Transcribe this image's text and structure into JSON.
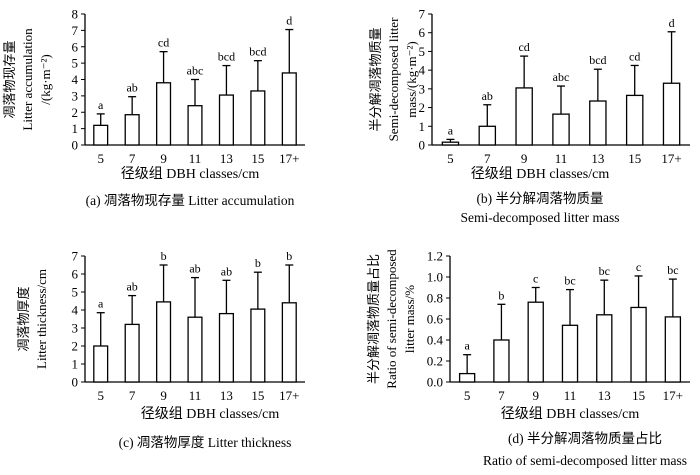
{
  "chart_data": [
    {
      "type": "bar",
      "panel": "a",
      "categories": [
        "5",
        "7",
        "9",
        "11",
        "13",
        "15",
        "17+"
      ],
      "values": [
        1.2,
        1.85,
        3.8,
        2.4,
        3.05,
        3.3,
        4.4
      ],
      "errors": [
        0.7,
        1.1,
        1.9,
        1.6,
        1.8,
        1.85,
        2.65
      ],
      "significance": [
        "a",
        "ab",
        "cd",
        "abc",
        "bcd",
        "bcd",
        "d"
      ],
      "ylim": [
        0,
        8
      ],
      "yticks": [
        "0",
        "1",
        "2",
        "3",
        "4",
        "5",
        "6",
        "7",
        "8"
      ],
      "ylabel_lines": [
        "凋落物现存量",
        "Litter accumulation",
        "/(kg·m⁻²)"
      ],
      "xlabel": "径级组 DBH classes/cm",
      "caption_lines": [
        "(a) 凋落物现存量 Litter accumulation"
      ]
    },
    {
      "type": "bar",
      "panel": "b",
      "categories": [
        "5",
        "7",
        "9",
        "11",
        "13",
        "15",
        "17+"
      ],
      "values": [
        0.15,
        1.0,
        3.05,
        1.65,
        2.35,
        2.65,
        3.3
      ],
      "errors": [
        0.15,
        1.15,
        1.7,
        1.5,
        1.7,
        1.6,
        2.75
      ],
      "significance": [
        "a",
        "ab",
        "cd",
        "abc",
        "bcd",
        "cd",
        "d"
      ],
      "ylim": [
        0,
        7
      ],
      "yticks": [
        "0",
        "1",
        "2",
        "3",
        "4",
        "5",
        "6",
        "7"
      ],
      "ylabel_lines": [
        "半分解凋落物质量",
        "Semi-decomposed litter",
        "mass/(kg·m⁻²)"
      ],
      "xlabel": "径级组 DBH classes/cm",
      "caption_lines": [
        "(b) 半分解凋落物质量",
        "Semi-decomposed litter mass"
      ]
    },
    {
      "type": "bar",
      "panel": "c",
      "categories": [
        "5",
        "7",
        "9",
        "11",
        "13",
        "15",
        "17+"
      ],
      "values": [
        2.0,
        3.2,
        4.45,
        3.6,
        3.8,
        4.05,
        4.4
      ],
      "errors": [
        1.85,
        1.6,
        2.05,
        2.2,
        1.85,
        2.05,
        2.1
      ],
      "significance": [
        "a",
        "ab",
        "b",
        "ab",
        "ab",
        "b",
        "b"
      ],
      "ylim": [
        0,
        7
      ],
      "yticks": [
        "0",
        "1",
        "2",
        "3",
        "4",
        "5",
        "6",
        "7"
      ],
      "ylabel_lines": [
        "凋落物厚度",
        "Litter thickness/cm"
      ],
      "xlabel": "径级组 DBH classes/cm",
      "caption_lines": [
        "(c) 凋落物厚度 Litter thickness"
      ]
    },
    {
      "type": "bar",
      "panel": "d",
      "categories": [
        "5",
        "7",
        "9",
        "11",
        "13",
        "15",
        "17+"
      ],
      "values": [
        0.08,
        0.4,
        0.76,
        0.54,
        0.64,
        0.71,
        0.62
      ],
      "errors": [
        0.18,
        0.34,
        0.14,
        0.34,
        0.33,
        0.3,
        0.36
      ],
      "significance": [
        "a",
        "b",
        "c",
        "bc",
        "bc",
        "c",
        "bc"
      ],
      "ylim": [
        0,
        1.2
      ],
      "yticks": [
        "0.0",
        "0.2",
        "0.4",
        "0.6",
        "0.8",
        "1.0",
        "1.2"
      ],
      "ylabel_lines": [
        "半分解凋落物质量占比",
        "Ratio of semi-decomposed",
        "litter mass/%"
      ],
      "xlabel": "径级组 DBH classes/cm",
      "caption_lines": [
        "(d) 半分解凋落物质量占比",
        "Ratio of semi-decomposed litter mass"
      ]
    }
  ]
}
